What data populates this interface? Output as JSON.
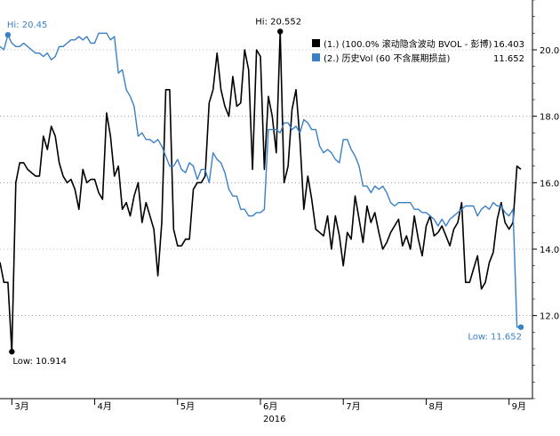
{
  "chart_data": {
    "type": "line",
    "title": "",
    "xlabel": "2016",
    "ylabel": "",
    "ylim": [
      9.5,
      21.5
    ],
    "y_ticks": [
      12,
      14,
      16,
      18,
      20
    ],
    "y_tick_labels": [
      "12.00",
      "14.00",
      "16.00",
      "18.00",
      "20.00"
    ],
    "grid": "horizontal dotted",
    "legend_position": "top-right",
    "x_ticks": [
      {
        "x": 3,
        "label": "3月"
      },
      {
        "x": 24,
        "label": "4月"
      },
      {
        "x": 45,
        "label": "5月"
      },
      {
        "x": 66,
        "label": "6月"
      },
      {
        "x": 87,
        "label": "7月"
      },
      {
        "x": 108,
        "label": "8月"
      },
      {
        "x": 129,
        "label": "9月"
      }
    ],
    "year_label": {
      "x": 66,
      "label": "2016"
    },
    "series": [
      {
        "name": "(1.) (100.0% 滚动隐含波动 BVOL - 彭博)",
        "last_value": "16.403",
        "color": "#000000",
        "x": [
          0,
          1,
          2,
          3,
          4,
          5,
          6,
          7,
          8,
          9,
          10,
          11,
          12,
          13,
          14,
          15,
          16,
          17,
          18,
          19,
          20,
          21,
          22,
          23,
          24,
          25,
          26,
          27,
          28,
          29,
          30,
          31,
          32,
          33,
          34,
          35,
          36,
          37,
          38,
          39,
          40,
          41,
          42,
          43,
          44,
          45,
          46,
          47,
          48,
          49,
          50,
          51,
          52,
          53,
          54,
          55,
          56,
          57,
          58,
          59,
          60,
          61,
          62,
          63,
          64,
          65,
          66,
          67,
          68,
          69,
          70,
          71,
          72,
          73,
          74,
          75,
          76,
          77,
          78,
          79,
          80,
          81,
          82,
          83,
          84,
          85,
          86,
          87,
          88,
          89,
          90,
          91,
          92,
          93,
          94,
          95,
          96,
          97,
          98,
          99,
          100,
          101,
          102,
          103,
          104,
          105,
          106,
          107,
          108,
          109,
          110,
          111,
          112,
          113,
          114,
          115,
          116,
          117,
          118,
          119,
          120,
          121,
          122,
          123,
          124,
          125,
          126,
          127,
          128,
          129,
          130,
          131,
          132
        ],
        "values": [
          13.6,
          13.0,
          13.0,
          10.9,
          16.0,
          16.6,
          16.6,
          16.4,
          16.3,
          16.2,
          16.2,
          17.4,
          17.0,
          17.7,
          17.4,
          16.6,
          16.2,
          16.0,
          16.1,
          15.8,
          15.2,
          16.4,
          16.0,
          16.1,
          16.1,
          15.7,
          15.5,
          18.1,
          17.4,
          16.2,
          16.5,
          15.2,
          15.4,
          15.0,
          15.6,
          16.0,
          14.8,
          15.4,
          15.0,
          14.6,
          13.2,
          14.8,
          18.8,
          18.8,
          14.6,
          14.1,
          14.1,
          14.3,
          14.3,
          15.8,
          16.0,
          16.0,
          16.2,
          18.4,
          18.8,
          19.9,
          18.8,
          18.3,
          18.0,
          19.2,
          18.3,
          18.4,
          20.0,
          19.4,
          16.4,
          20.0,
          19.8,
          16.4,
          18.6,
          18.0,
          16.9,
          20.552,
          16.0,
          16.5,
          18.2,
          18.8,
          17.3,
          15.2,
          16.2,
          15.5,
          14.6,
          14.5,
          14.4,
          15.0,
          14.0,
          15.0,
          14.4,
          13.5,
          14.5,
          14.3,
          15.6,
          14.9,
          14.2,
          15.3,
          14.8,
          15.1,
          14.5,
          14.0,
          14.2,
          14.5,
          14.7,
          14.9,
          14.1,
          14.4,
          14.0,
          15.0,
          14.3,
          13.8,
          14.7,
          15.0,
          14.4,
          14.5,
          14.7,
          14.4,
          14.1,
          14.6,
          14.8,
          15.4,
          13.0,
          13.0,
          13.4,
          13.8,
          12.8,
          13.0,
          13.6,
          13.9,
          14.9,
          15.4,
          14.8,
          14.6,
          14.8,
          16.5,
          16.403
        ]
      },
      {
        "name": "(2.) 历史Vol (60 不含展期损益)",
        "last_value": "11.652",
        "color": "#3a80c6",
        "x": [
          0,
          1,
          2,
          3,
          4,
          5,
          6,
          7,
          8,
          9,
          10,
          11,
          12,
          13,
          14,
          15,
          16,
          17,
          18,
          19,
          20,
          21,
          22,
          23,
          24,
          25,
          26,
          27,
          28,
          29,
          30,
          31,
          32,
          33,
          34,
          35,
          36,
          37,
          38,
          39,
          40,
          41,
          42,
          43,
          44,
          45,
          46,
          47,
          48,
          49,
          50,
          51,
          52,
          53,
          54,
          55,
          56,
          57,
          58,
          59,
          60,
          61,
          62,
          63,
          64,
          65,
          66,
          67,
          68,
          69,
          70,
          71,
          72,
          73,
          74,
          75,
          76,
          77,
          78,
          79,
          80,
          81,
          82,
          83,
          84,
          85,
          86,
          87,
          88,
          89,
          90,
          91,
          92,
          93,
          94,
          95,
          96,
          97,
          98,
          99,
          100,
          101,
          102,
          103,
          104,
          105,
          106,
          107,
          108,
          109,
          110,
          111,
          112,
          113,
          114,
          115,
          116,
          117,
          118,
          119,
          120,
          121,
          122,
          123,
          124,
          125,
          126,
          127,
          128,
          129,
          130,
          131,
          132
        ],
        "values": [
          20.1,
          20.0,
          20.45,
          20.2,
          20.1,
          20.1,
          20.2,
          20.1,
          20.0,
          19.9,
          19.9,
          19.8,
          19.9,
          19.7,
          19.8,
          20.1,
          20.1,
          20.2,
          20.3,
          20.3,
          20.4,
          20.3,
          20.4,
          20.2,
          20.2,
          20.5,
          20.5,
          20.5,
          20.3,
          20.4,
          19.3,
          19.4,
          18.8,
          18.6,
          18.3,
          17.4,
          17.5,
          17.3,
          17.3,
          17.2,
          17.3,
          17.1,
          16.8,
          16.5,
          16.5,
          16.7,
          16.4,
          16.3,
          16.6,
          16.5,
          16.1,
          16.4,
          16.4,
          16.0,
          16.9,
          16.7,
          16.6,
          16.3,
          15.8,
          15.6,
          15.6,
          15.2,
          15.2,
          15.0,
          15.0,
          15.1,
          15.1,
          15.2,
          17.6,
          17.6,
          17.6,
          17.5,
          17.8,
          17.8,
          17.6,
          17.7,
          17.5,
          17.9,
          17.8,
          17.6,
          17.6,
          17.1,
          16.9,
          17.0,
          16.9,
          16.7,
          16.6,
          17.3,
          17.3,
          17.0,
          16.8,
          16.5,
          15.9,
          15.9,
          15.7,
          15.9,
          15.8,
          15.9,
          15.7,
          15.4,
          15.3,
          15.4,
          15.4,
          15.4,
          15.4,
          15.2,
          15.2,
          15.1,
          15.1,
          15.0,
          14.9,
          14.7,
          14.9,
          14.7,
          14.9,
          15.0,
          15.1,
          15.2,
          15.3,
          15.3,
          15.3,
          15.0,
          15.2,
          15.3,
          15.2,
          15.4,
          15.3,
          15.3,
          15.1,
          15.0,
          15.2,
          11.652,
          11.652
        ]
      }
    ],
    "annotations": [
      {
        "text": "Hi: 20.45",
        "x": 2,
        "y": 20.45,
        "series": 1
      },
      {
        "text": "Hi: 20.552",
        "x": 71,
        "y": 20.552,
        "series": 0
      },
      {
        "text": "Low: 10.914",
        "x": 3,
        "y": 10.914,
        "series": 0
      },
      {
        "text": "Low: 11.652",
        "x": 132,
        "y": 11.652,
        "series": 1
      }
    ]
  }
}
